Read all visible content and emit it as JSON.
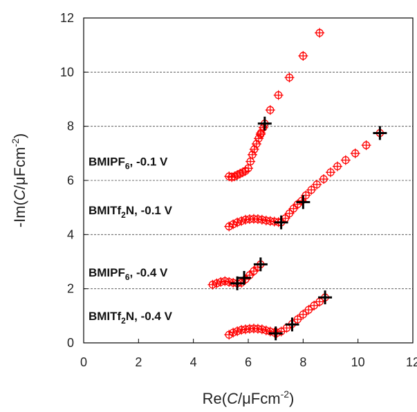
{
  "chart_data": {
    "type": "scatter",
    "xlim": [
      0,
      12
    ],
    "ylim": [
      0,
      12
    ],
    "xticks": [
      "0",
      "2",
      "4",
      "6",
      "8",
      "10",
      "12"
    ],
    "yticks": [
      "0",
      "2",
      "4",
      "6",
      "8",
      "10",
      "12"
    ],
    "xlabel": {
      "pre": "Re(",
      "italic": "C",
      "post": "/μFcm",
      "sup": "-2",
      "end": ")"
    },
    "ylabel": {
      "pre": "-Im(",
      "italic": "C",
      "post": "/μFcm",
      "sup": "-2",
      "end": ")"
    },
    "grid": "horizontal dashed",
    "colors": {
      "series": "#ff0000",
      "highlight": "#000000"
    },
    "annotations": [
      {
        "pre": "BMIPF",
        "sub": "6",
        "post": ", -0.1 V",
        "x": 0.1,
        "y": 6.7
      },
      {
        "pre": "BMITf",
        "sub": "2",
        "post": "N, -0.1 V",
        "x": 0.1,
        "y": 4.9
      },
      {
        "pre": "BMIPF",
        "sub": "6",
        "post": ", -0.4 V",
        "x": 0.1,
        "y": 2.6
      },
      {
        "pre": "BMITf",
        "sub": "2",
        "post": "N, -0.4 V",
        "x": 0.1,
        "y": 1.0
      }
    ],
    "series": [
      {
        "points": [
          [
            5.3,
            6.15
          ],
          [
            5.4,
            6.12
          ],
          [
            5.5,
            6.15
          ],
          [
            5.6,
            6.2
          ],
          [
            5.7,
            6.25
          ],
          [
            5.8,
            6.3
          ],
          [
            5.9,
            6.35
          ],
          [
            6.0,
            6.45
          ],
          [
            6.08,
            6.7
          ],
          [
            6.15,
            6.95
          ],
          [
            6.22,
            7.15
          ],
          [
            6.3,
            7.35
          ],
          [
            6.38,
            7.55
          ],
          [
            6.46,
            7.75
          ],
          [
            6.55,
            7.95
          ],
          [
            8.6,
            11.45
          ],
          [
            8.0,
            10.6
          ],
          [
            7.5,
            9.8
          ],
          [
            7.1,
            9.15
          ],
          [
            6.8,
            8.6
          ],
          [
            6.6,
            8.1
          ],
          [
            6.45,
            7.7
          ]
        ],
        "markers": [
          [
            6.6,
            8.1
          ]
        ]
      },
      {
        "points": [
          [
            5.3,
            4.3
          ],
          [
            5.45,
            4.38
          ],
          [
            5.6,
            4.45
          ],
          [
            5.75,
            4.5
          ],
          [
            5.9,
            4.55
          ],
          [
            6.05,
            4.57
          ],
          [
            6.2,
            4.58
          ],
          [
            6.35,
            4.57
          ],
          [
            6.5,
            4.55
          ],
          [
            6.65,
            4.52
          ],
          [
            6.8,
            4.5
          ],
          [
            6.95,
            4.48
          ],
          [
            7.1,
            4.46
          ],
          [
            7.2,
            4.45
          ],
          [
            7.35,
            4.6
          ],
          [
            7.5,
            4.78
          ],
          [
            7.65,
            4.96
          ],
          [
            7.8,
            5.12
          ],
          [
            7.95,
            5.25
          ],
          [
            8.1,
            5.45
          ],
          [
            8.3,
            5.65
          ],
          [
            8.5,
            5.85
          ],
          [
            8.75,
            6.05
          ],
          [
            9.0,
            6.3
          ],
          [
            9.25,
            6.52
          ],
          [
            9.55,
            6.75
          ],
          [
            9.9,
            7.0
          ],
          [
            10.3,
            7.3
          ],
          [
            10.8,
            7.75
          ]
        ],
        "markers": [
          [
            7.2,
            4.45
          ],
          [
            8.0,
            5.2
          ],
          [
            10.8,
            7.75
          ]
        ]
      },
      {
        "points": [
          [
            4.7,
            2.15
          ],
          [
            4.85,
            2.2
          ],
          [
            5.0,
            2.25
          ],
          [
            5.15,
            2.28
          ],
          [
            5.3,
            2.25
          ],
          [
            5.45,
            2.22
          ],
          [
            5.6,
            2.2
          ],
          [
            5.75,
            2.22
          ],
          [
            5.9,
            2.35
          ],
          [
            6.05,
            2.5
          ],
          [
            6.2,
            2.65
          ],
          [
            6.35,
            2.8
          ],
          [
            6.45,
            2.9
          ]
        ],
        "markers": [
          [
            5.6,
            2.2
          ],
          [
            5.85,
            2.4
          ],
          [
            6.45,
            2.9
          ]
        ]
      },
      {
        "points": [
          [
            5.3,
            0.3
          ],
          [
            5.45,
            0.38
          ],
          [
            5.6,
            0.43
          ],
          [
            5.75,
            0.48
          ],
          [
            5.9,
            0.5
          ],
          [
            6.05,
            0.52
          ],
          [
            6.2,
            0.53
          ],
          [
            6.35,
            0.52
          ],
          [
            6.5,
            0.5
          ],
          [
            6.65,
            0.46
          ],
          [
            6.8,
            0.42
          ],
          [
            6.95,
            0.38
          ],
          [
            7.05,
            0.37
          ],
          [
            7.2,
            0.42
          ],
          [
            7.4,
            0.55
          ],
          [
            7.6,
            0.7
          ],
          [
            7.8,
            0.87
          ],
          [
            8.0,
            1.05
          ],
          [
            8.2,
            1.22
          ],
          [
            8.4,
            1.38
          ],
          [
            8.6,
            1.52
          ],
          [
            8.8,
            1.68
          ]
        ],
        "markers": [
          [
            7.0,
            0.35
          ],
          [
            7.6,
            0.68
          ],
          [
            8.8,
            1.68
          ]
        ]
      }
    ]
  }
}
